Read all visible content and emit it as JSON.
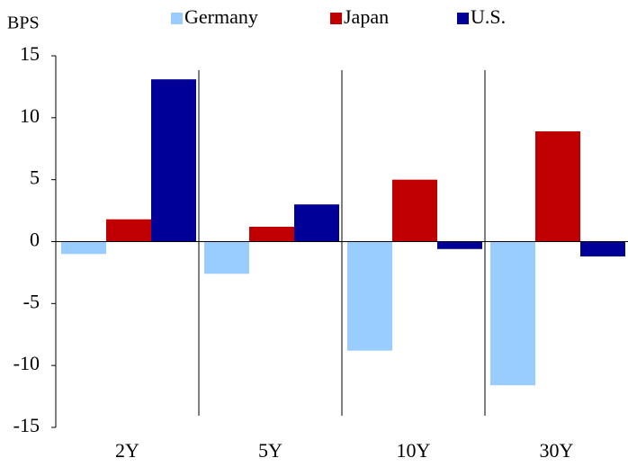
{
  "chart_data": {
    "type": "bar",
    "y_label": "BPS",
    "categories": [
      "2Y",
      "5Y",
      "10Y",
      "30Y"
    ],
    "series": [
      {
        "name": "Germany",
        "color": "#99ccff",
        "values": [
          -1.0,
          -2.6,
          -8.8,
          -11.6
        ]
      },
      {
        "name": "Japan",
        "color": "#c00000",
        "values": [
          1.8,
          1.2,
          5.0,
          8.9
        ]
      },
      {
        "name": "U.S.",
        "color": "#000099",
        "values": [
          13.1,
          3.0,
          -0.6,
          -1.2
        ]
      }
    ],
    "ylim": [
      -15,
      15
    ],
    "yticks": [
      -15,
      -10,
      -5,
      0,
      5,
      10,
      15
    ]
  }
}
